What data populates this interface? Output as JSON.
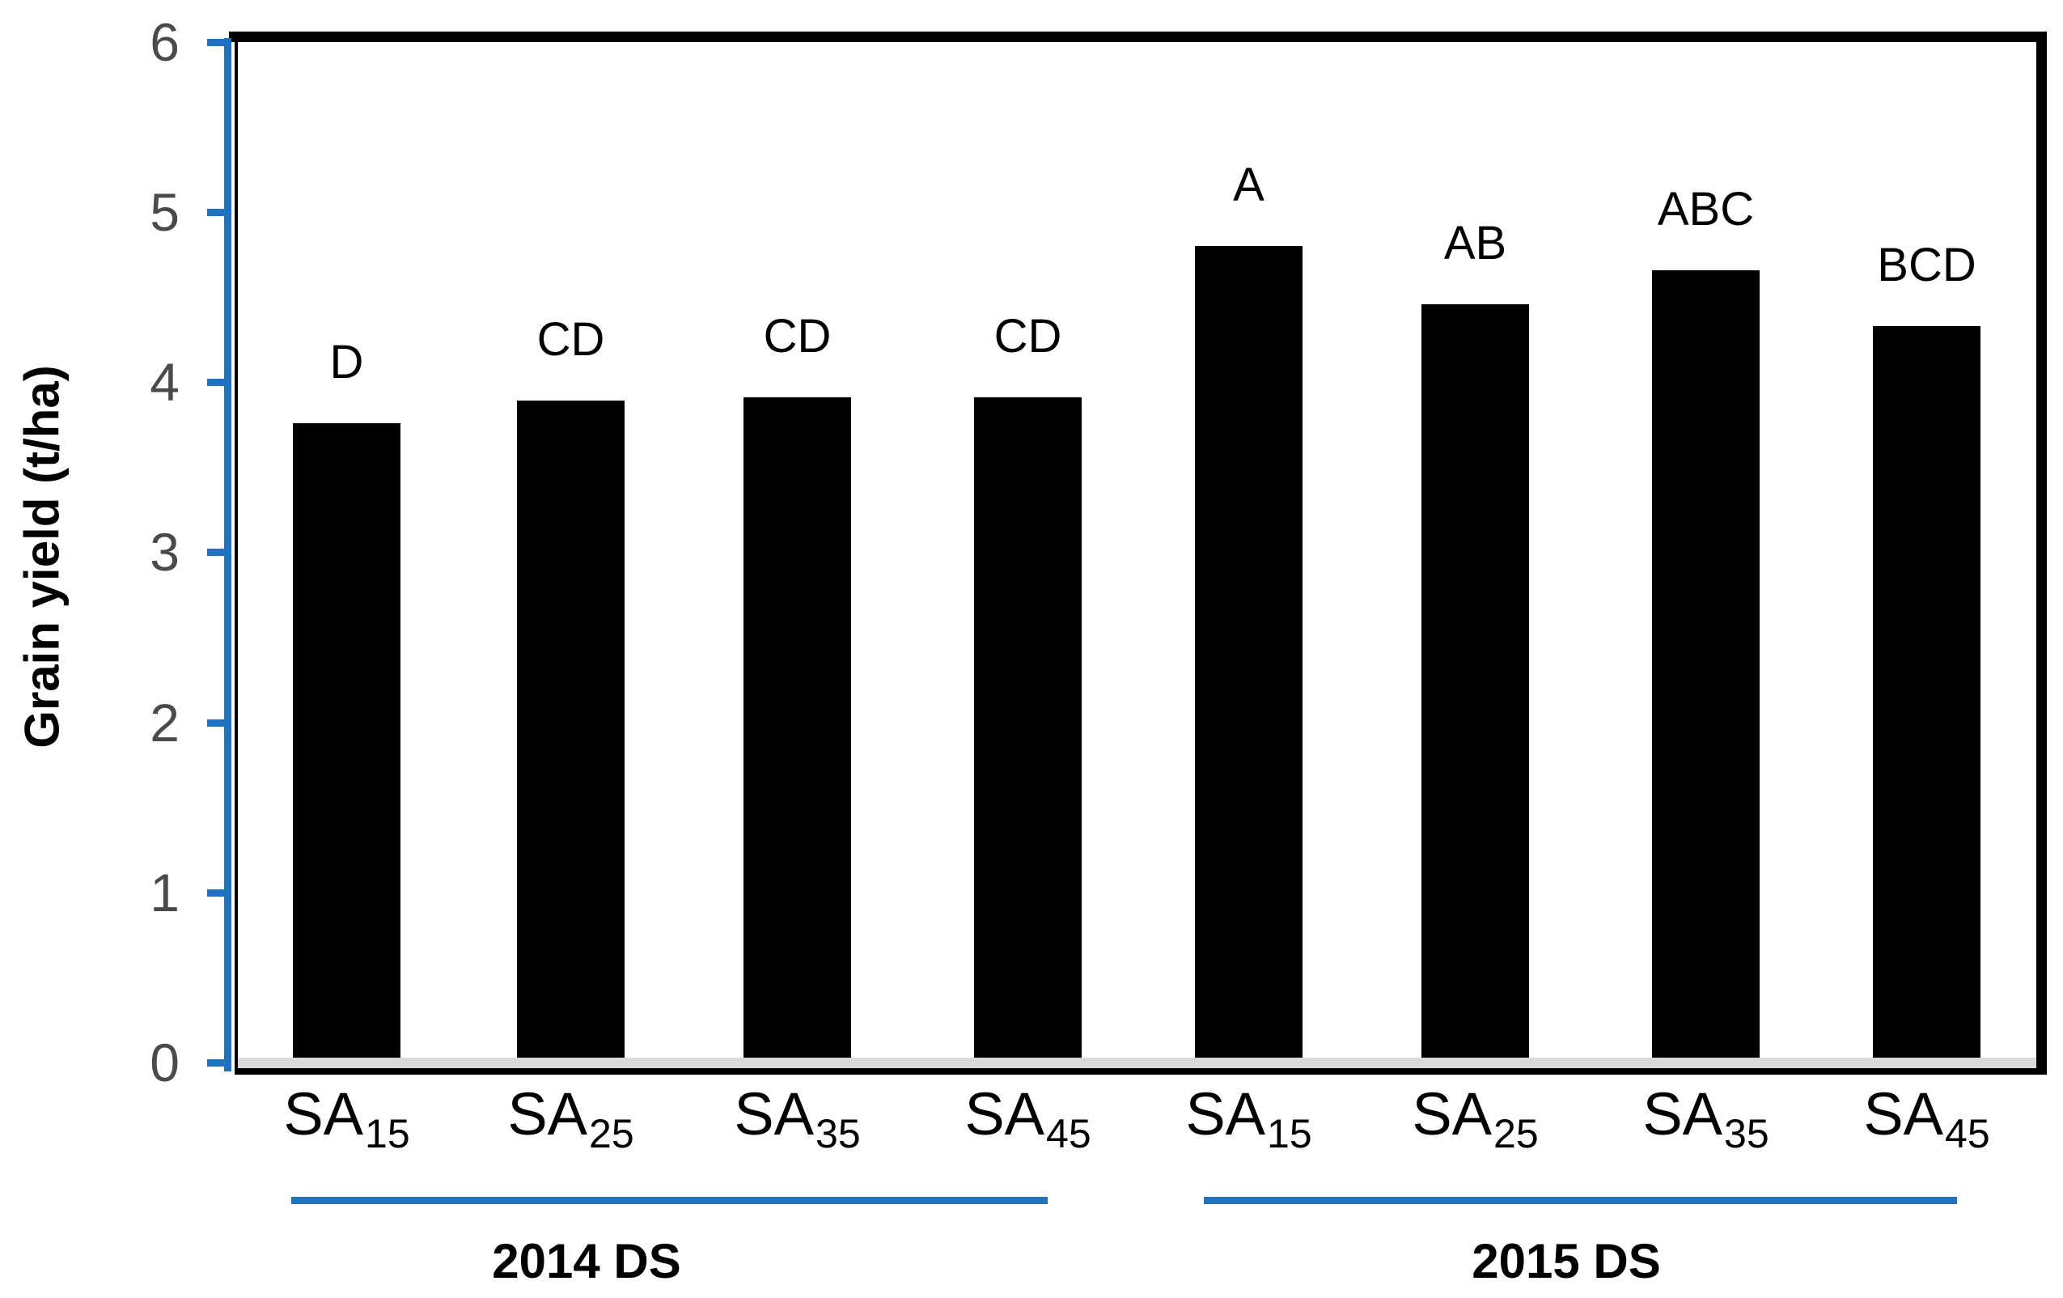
{
  "chart_data": {
    "type": "bar",
    "title": "",
    "xlabel": "",
    "ylabel": "Grain yield (t/ha)",
    "ylim": [
      0,
      6
    ],
    "yticks": [
      0,
      1,
      2,
      3,
      4,
      5,
      6
    ],
    "grid": false,
    "legend": false,
    "bar_color": "#000000",
    "axis_color": "#1f72bf",
    "baseline_color": "#d9d9d9",
    "category_base": "SA",
    "category_subscripts": [
      "15",
      "25",
      "35",
      "45",
      "15",
      "25",
      "35",
      "45"
    ],
    "categories": [
      "SA15",
      "SA25",
      "SA35",
      "SA45",
      "SA15",
      "SA25",
      "SA35",
      "SA45"
    ],
    "series": [
      {
        "name": "Grain yield (t/ha)",
        "values": [
          3.76,
          3.89,
          3.91,
          3.91,
          4.8,
          4.46,
          4.66,
          4.33
        ]
      }
    ],
    "significance_letters": [
      "D",
      "CD",
      "CD",
      "CD",
      "A",
      "AB",
      "ABC",
      "BCD"
    ],
    "groups": [
      {
        "label": "2014 DS",
        "bar_indices": [
          0,
          1,
          2,
          3
        ]
      },
      {
        "label": "2015 DS",
        "bar_indices": [
          4,
          5,
          6,
          7
        ]
      }
    ]
  }
}
